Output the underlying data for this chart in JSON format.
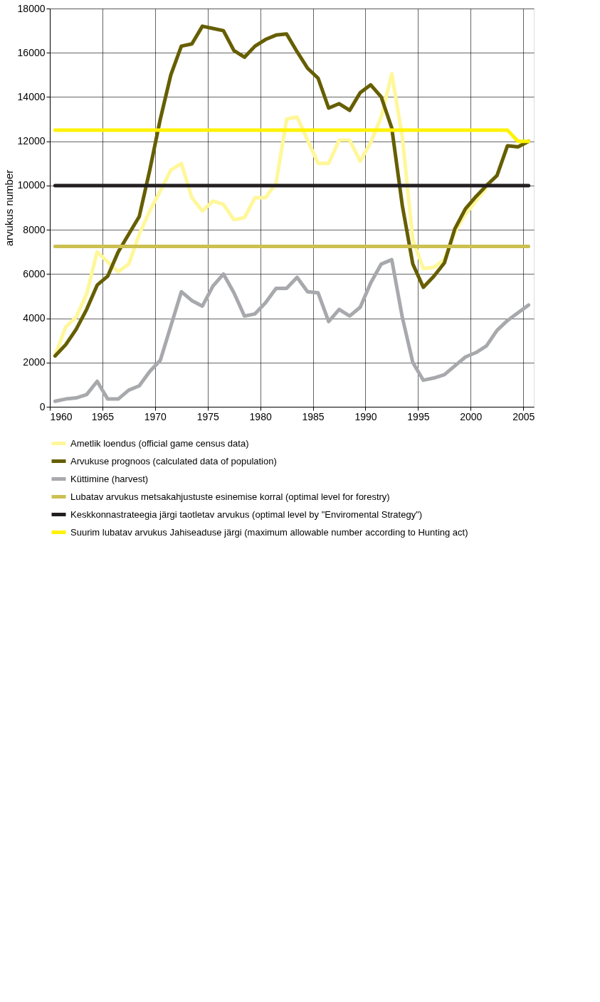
{
  "chart_data": {
    "type": "line",
    "ylabel": "arvukus number",
    "xlim": [
      1960,
      2006
    ],
    "ylim": [
      0,
      18000
    ],
    "xticks": [
      1960,
      1965,
      1970,
      1975,
      1980,
      1985,
      1990,
      1995,
      2000,
      2005
    ],
    "yticks": [
      0,
      2000,
      4000,
      6000,
      8000,
      10000,
      12000,
      14000,
      16000,
      18000
    ],
    "grid": true,
    "legend": "bottom",
    "series": [
      {
        "name": "Ametlik loendus (official game census data)",
        "color": "#fff799",
        "x": [
          1960.5,
          1961.5,
          1962.5,
          1963.5,
          1964.5,
          1965.5,
          1966.5,
          1967.5,
          1968.5,
          1969.5,
          1970.5,
          1971.5,
          1972.5,
          1973.5,
          1974.5,
          1975.5,
          1976.5,
          1977.5,
          1978.5,
          1979.5,
          1980.5,
          1981.5,
          1982.5,
          1983.5,
          1984.5,
          1985.5,
          1986.5,
          1987.5,
          1988.5,
          1989.5,
          1990.5,
          1991.5,
          1992.5,
          1993.5,
          1994.5,
          1995.5,
          1996.5,
          1997.5,
          1998.5,
          1999.5,
          2000.5,
          2001.5
        ],
        "values": [
          2300,
          3600,
          4050,
          5100,
          7000,
          6550,
          6100,
          6450,
          7800,
          8850,
          9750,
          10700,
          11000,
          9450,
          8850,
          9300,
          9150,
          8450,
          8550,
          9450,
          9450,
          10100,
          13000,
          13100,
          12050,
          11000,
          11000,
          12050,
          12050,
          11100,
          11950,
          13100,
          15050,
          12200,
          7550,
          6250,
          6300,
          6650,
          7900,
          8700,
          9300,
          9900
        ]
      },
      {
        "name": "Arvukuse prognoos (calculated data of population)",
        "color": "#665e00",
        "x": [
          1960.5,
          1961.5,
          1962.5,
          1963.5,
          1964.5,
          1965.5,
          1966.5,
          1967.5,
          1968.5,
          1969.5,
          1970.5,
          1971.5,
          1972.5,
          1973.5,
          1974.5,
          1975.5,
          1976.5,
          1977.5,
          1978.5,
          1979.5,
          1980.5,
          1981.5,
          1982.5,
          1983.5,
          1984.5,
          1985.5,
          1986.5,
          1987.5,
          1988.5,
          1989.5,
          1990.5,
          1991.5,
          1992.5,
          1993.5,
          1994.5,
          1995.5,
          1996.5,
          1997.5,
          1998.5,
          1999.5,
          2000.5,
          2001.5,
          2002.5,
          2003.5,
          2004.5,
          2005.5
        ],
        "values": [
          2300,
          2800,
          3500,
          4400,
          5500,
          5900,
          7000,
          7800,
          8600,
          10700,
          13000,
          15000,
          16300,
          16400,
          17200,
          17100,
          17000,
          16100,
          15800,
          16300,
          16600,
          16800,
          16850,
          16050,
          15300,
          14850,
          13500,
          13700,
          13400,
          14200,
          14550,
          14000,
          12600,
          9100,
          6450,
          5400,
          5900,
          6500,
          8050,
          8950,
          9500,
          10000,
          10450,
          11800,
          11750,
          12000
        ]
      },
      {
        "name": "Küttimine (harvest)",
        "color": "#a7a9ac",
        "x": [
          1960.5,
          1961.5,
          1962.5,
          1963.5,
          1964.5,
          1965.5,
          1966.5,
          1967.5,
          1968.5,
          1969.5,
          1970.5,
          1971.5,
          1972.5,
          1973.5,
          1974.5,
          1975.5,
          1976.5,
          1977.5,
          1978.5,
          1979.5,
          1980.5,
          1981.5,
          1982.5,
          1983.5,
          1984.5,
          1985.5,
          1986.5,
          1987.5,
          1988.5,
          1989.5,
          1990.5,
          1991.5,
          1992.5,
          1993.5,
          1994.5,
          1995.5,
          1996.5,
          1997.5,
          1998.5,
          1999.5,
          2000.5,
          2001.5,
          2002.5,
          2003.5,
          2004.5,
          2005.5
        ],
        "values": [
          250,
          350,
          400,
          550,
          1150,
          350,
          350,
          750,
          950,
          1600,
          2100,
          3650,
          5200,
          4800,
          4550,
          5450,
          6000,
          5150,
          4100,
          4200,
          4700,
          5350,
          5350,
          5850,
          5200,
          5150,
          3850,
          4400,
          4100,
          4500,
          5600,
          6450,
          6650,
          4050,
          2000,
          1200,
          1300,
          1450,
          1850,
          2250,
          2450,
          2750,
          3450,
          3900,
          4250,
          4600
        ]
      },
      {
        "name": "Lubatav arvukus metsakahjustuste esinemise korral (optimal level for forestry)",
        "color": "#ccc050",
        "x": [
          1960.5,
          2005.5
        ],
        "values": [
          7250,
          7250
        ]
      },
      {
        "name": "Keskkonnastrateegia järgi taotletav arvukus (optimal level by \"Enviromental Strategy\")",
        "color": "#231f20",
        "x": [
          1960.5,
          2005.5
        ],
        "values": [
          10000,
          10000
        ]
      },
      {
        "name": "Suurim lubatav arvukus Jahiseaduse järgi (maximum allowable number according to Hunting act)",
        "color": "#fff200",
        "x": [
          1960.5,
          2003.5,
          2004.5,
          2005.5
        ],
        "values": [
          12500,
          12500,
          12000,
          12000
        ]
      }
    ]
  }
}
